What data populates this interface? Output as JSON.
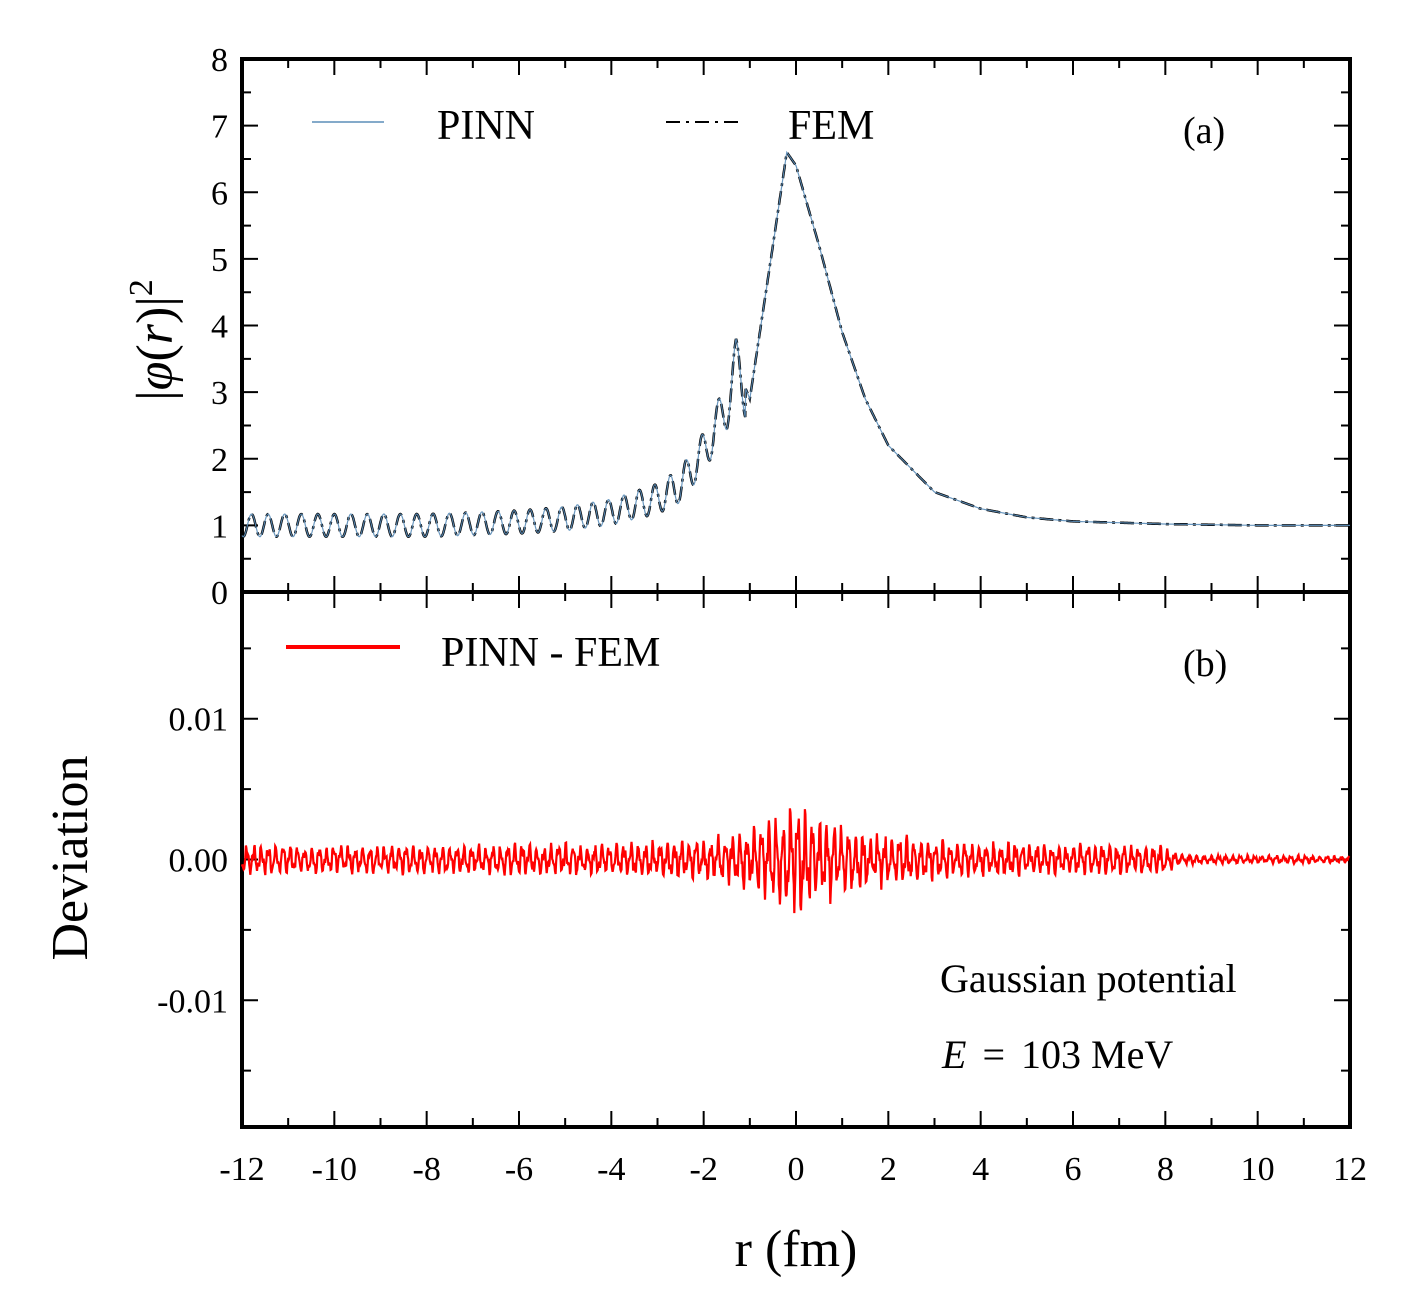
{
  "colors": {
    "pinn": "#5b8db8",
    "fem": "#000000",
    "deviation": "#ff0000",
    "frame": "#000000"
  },
  "chart_data": [
    {
      "panel": "(a)",
      "type": "line",
      "ylabel": "|φ(r)|²",
      "ylabel_parts": {
        "pre": "|",
        "sym": "φ",
        "open": "(",
        "var": "r",
        "close": ")|",
        "sup": "2"
      },
      "xlim": [
        -12,
        12
      ],
      "ylim": [
        0,
        8
      ],
      "yticks": [
        "0",
        "1",
        "2",
        "3",
        "4",
        "5",
        "6",
        "7",
        "8"
      ],
      "legend": {
        "placement": "top",
        "entries": [
          "PINN",
          "FEM"
        ]
      },
      "series": [
        {
          "name": "PINN",
          "style": "solid-thin",
          "color": "#5b8db8",
          "x": [
            -12,
            -10,
            -8,
            -6,
            -5,
            -4,
            -3,
            -2.5,
            -2,
            -1.5,
            -1.3,
            -1,
            -0.5,
            -0.2,
            0,
            0.5,
            1,
            1.5,
            2,
            3,
            4,
            5,
            6,
            8,
            10,
            12
          ],
          "y": [
            1.0,
            1.0,
            1.0,
            1.05,
            1.1,
            1.2,
            1.4,
            1.6,
            2.1,
            2.8,
            3.4,
            2.9,
            5.2,
            6.6,
            6.4,
            5.2,
            3.9,
            2.9,
            2.2,
            1.5,
            1.25,
            1.12,
            1.06,
            1.02,
            1.0,
            1.0
          ]
        },
        {
          "name": "FEM",
          "style": "dash-dot",
          "color": "#000000",
          "x": [
            -12,
            -10,
            -8,
            -6,
            -5,
            -4,
            -3,
            -2.5,
            -2,
            -1.5,
            -1.3,
            -1,
            -0.5,
            -0.2,
            0,
            0.5,
            1,
            1.5,
            2,
            3,
            4,
            5,
            6,
            8,
            10,
            12
          ],
          "y": [
            1.0,
            1.0,
            1.0,
            1.05,
            1.1,
            1.2,
            1.4,
            1.6,
            2.1,
            2.8,
            3.4,
            2.9,
            5.2,
            6.6,
            6.4,
            5.2,
            3.9,
            2.9,
            2.2,
            1.5,
            1.25,
            1.12,
            1.06,
            1.02,
            1.0,
            1.0
          ]
        }
      ]
    },
    {
      "panel": "(b)",
      "type": "line",
      "ylabel": "Deviation",
      "xlabel": "r (fm)",
      "xlim": [
        -12,
        12
      ],
      "ylim": [
        -0.019,
        0.019
      ],
      "xticks": [
        "-12",
        "-10",
        "-8",
        "-6",
        "-4",
        "-2",
        "0",
        "2",
        "4",
        "6",
        "8",
        "10",
        "12"
      ],
      "yticks": [
        "-0.01",
        "0.00",
        "0.01"
      ],
      "legend": {
        "placement": "top-left",
        "entries": [
          "PINN - FEM"
        ]
      },
      "series": [
        {
          "name": "PINN - FEM",
          "color": "#ff0000",
          "envelope_x": [
            -12,
            -8,
            -4,
            -2,
            -1,
            -0.5,
            0,
            0.5,
            1,
            2,
            4,
            8,
            8.3,
            12
          ],
          "envelope_amp": [
            0.0012,
            0.0012,
            0.0013,
            0.0016,
            0.0025,
            0.0035,
            0.0045,
            0.0035,
            0.003,
            0.002,
            0.0014,
            0.0012,
            0.0004,
            0.0003
          ]
        }
      ],
      "annotations": {
        "line1": "Gaussian potential",
        "line2_var": "E",
        "line2_eq": "=",
        "line2_val": "103 MeV"
      }
    }
  ]
}
